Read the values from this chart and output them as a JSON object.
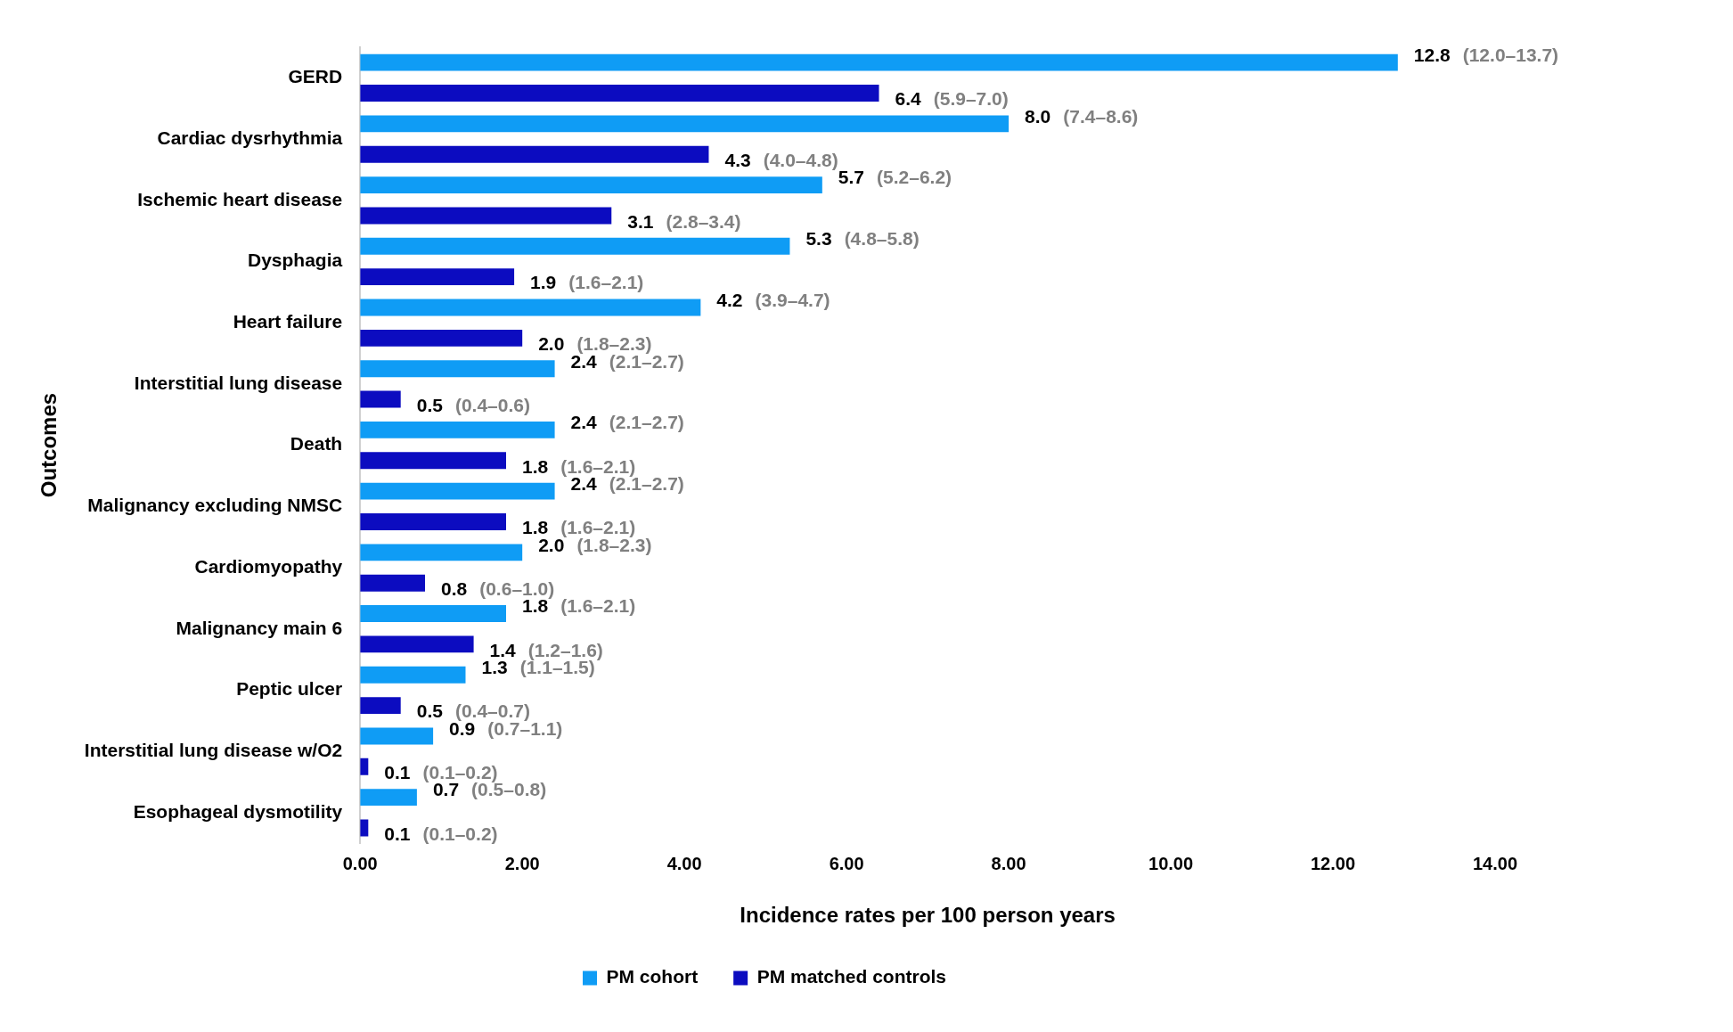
{
  "chart_data": {
    "type": "bar",
    "orientation": "horizontal",
    "xlabel": "Incidence rates per 100 person years",
    "ylabel": "Outcomes",
    "categories": [
      "GERD",
      "Cardiac dysrhythmia",
      "Ischemic heart disease",
      "Dysphagia",
      "Heart failure",
      "Interstitial lung disease",
      "Death",
      "Malignancy excluding NMSC",
      "Cardiomyopathy",
      "Malignancy main 6",
      "Peptic ulcer",
      "Interstitial lung disease w/O2",
      "Esophageal dysmotility"
    ],
    "series": [
      {
        "name": "PM cohort",
        "color": "#0f9cf5",
        "values": [
          12.8,
          8.0,
          5.7,
          5.3,
          4.2,
          2.4,
          2.4,
          2.4,
          2.0,
          1.8,
          1.3,
          0.9,
          0.7
        ],
        "value_labels": [
          "12.8 (12.0–13.7)",
          "8.0 (7.4–8.6)",
          "5.7 (5.2–6.2)",
          "5.3 (4.8–5.8)",
          "4.2 (3.9–4.7)",
          "2.4 (2.1–2.7)",
          "2.4 (2.1–2.7)",
          "2.4 (2.1–2.7)",
          "2.0 (1.8–2.3)",
          "1.8 (1.6–2.1)",
          "1.3 (1.1–1.5)",
          "0.9 (0.7–1.1)",
          "0.7 (0.5–0.8)"
        ]
      },
      {
        "name": "PM matched controls",
        "color": "#0c0cc0",
        "values": [
          6.4,
          4.3,
          3.1,
          1.9,
          2.0,
          0.5,
          1.8,
          1.8,
          0.8,
          1.4,
          0.5,
          0.1,
          0.1
        ],
        "value_labels": [
          "6.4 (5.9–7.0)",
          "4.3 (4.0–4.8)",
          "3.1 (2.8–3.4)",
          "1.9 (1.6–2.1)",
          "2.0 (1.8–2.3)",
          "0.5 (0.4–0.6)",
          "1.8 (1.6–2.1)",
          "1.8 (1.6–2.1)",
          "0.8 (0.6–1.0)",
          "1.4 (1.2–1.6)",
          "0.5 (0.4–0.7)",
          "0.1 (0.1–0.2)",
          "0.1 (0.1–0.2)"
        ]
      }
    ],
    "xlim": [
      0,
      14
    ],
    "xticks": [
      {
        "value": 0,
        "label": "0.00"
      },
      {
        "value": 2,
        "label": "2.00"
      },
      {
        "value": 4,
        "label": "4.00"
      },
      {
        "value": 6,
        "label": "6.00"
      },
      {
        "value": 8,
        "label": "8.00"
      },
      {
        "value": 10,
        "label": "10.00"
      },
      {
        "value": 12,
        "label": "12.00"
      },
      {
        "value": 14,
        "label": "14.00"
      }
    ],
    "grid": false,
    "legend": "bottom"
  }
}
